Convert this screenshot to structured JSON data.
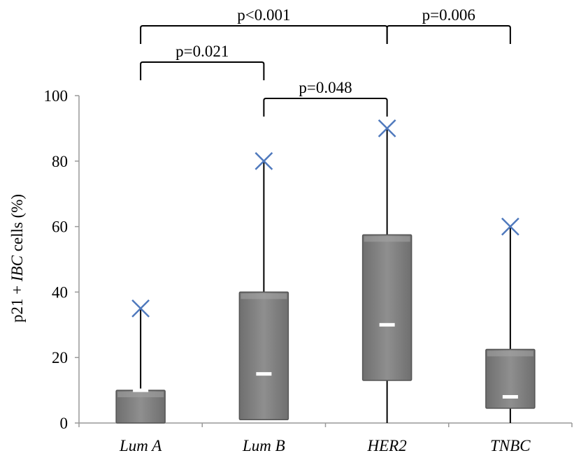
{
  "chart_data": {
    "type": "boxplot",
    "title": "",
    "xlabel": "",
    "ylabel": {
      "parts": [
        {
          "text": "p21 + ",
          "italic": false
        },
        {
          "text": "IBC",
          "italic": true
        },
        {
          "text": " cells (%)",
          "italic": false
        }
      ]
    },
    "ylim": [
      0,
      100
    ],
    "yticks": [
      0,
      20,
      40,
      60,
      80,
      100
    ],
    "categories": [
      "Lum A",
      "Lum B",
      "HER2",
      "TNBC"
    ],
    "boxes": [
      {
        "category": "Lum A",
        "min": 0,
        "q1": 0,
        "median": 10,
        "q3": 10,
        "max": 35,
        "mean": 35
      },
      {
        "category": "Lum B",
        "min": 1,
        "q1": 1,
        "median": 15,
        "q3": 40,
        "max": 80,
        "mean": 80
      },
      {
        "category": "HER2",
        "min": 0,
        "q1": 13,
        "median": 30,
        "q3": 57.5,
        "max": 90,
        "mean": 90
      },
      {
        "category": "TNBC",
        "min": 0,
        "q1": 4.5,
        "median": 8,
        "q3": 22.5,
        "max": 60,
        "mean": 60
      }
    ],
    "comparisons": [
      {
        "from": "Lum A",
        "to": "HER2",
        "label": "p<0.001"
      },
      {
        "from": "HER2",
        "to": "TNBC",
        "label": "p=0.006"
      },
      {
        "from": "Lum A",
        "to": "Lum B",
        "label": "p=0.021"
      },
      {
        "from": "Lum B",
        "to": "HER2",
        "label": "p=0.048"
      }
    ],
    "colors": {
      "box_fill": "#8a8a8a",
      "box_edge": "#555555",
      "median_line": "#ffffff",
      "mean_marker": "#4f79bd",
      "axis": "#999999"
    }
  }
}
